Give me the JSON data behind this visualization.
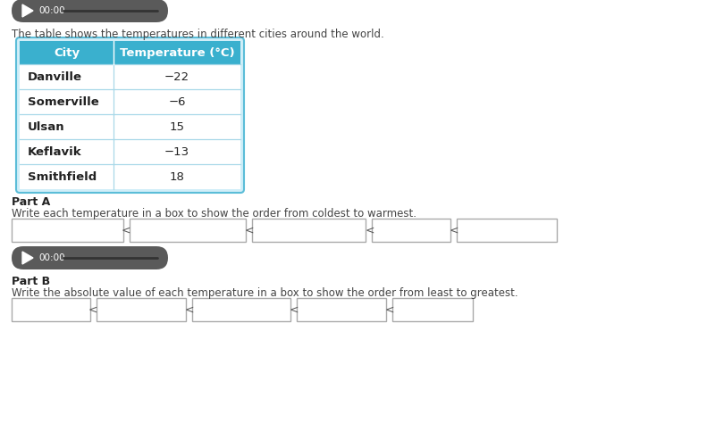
{
  "bg_color": "#ffffff",
  "table_cities": [
    "Danville",
    "Somerville",
    "Ulsan",
    "Keflavik",
    "Smithfield"
  ],
  "table_temps": [
    "−22",
    "−6",
    "15",
    "−13",
    "18"
  ],
  "header_city": "City",
  "header_temp": "Temperature (°C)",
  "header_bg": "#3ab0ce",
  "header_text_color": "#ffffff",
  "row_border_color": "#a8d8e8",
  "table_border_color": "#5bbdd8",
  "table_outer_bg": "#d0eef8",
  "intro_text": "The table shows the temperatures in different cities around the world.",
  "part_a_label": "Part A",
  "part_a_text": "Write each temperature in a box to show the order from coldest to warmest.",
  "part_b_label": "Part B",
  "part_b_text": "Write the absolute value of each temperature in a box to show the order from least to greatest.",
  "less_than_symbol": "<",
  "audio_bg": "#5a5a5a"
}
